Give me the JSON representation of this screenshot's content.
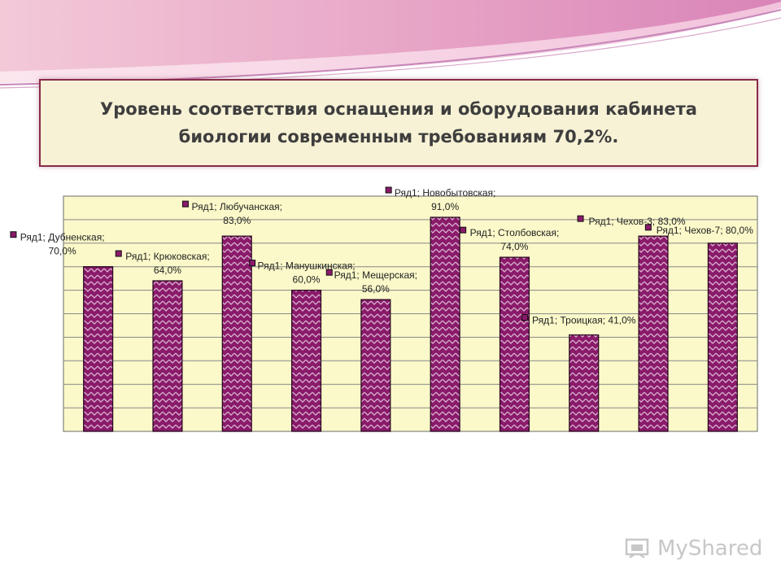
{
  "title": {
    "line1": "Уровень соответствия оснащения и оборудования кабинета",
    "line2": "биологии современным требованиям  70,2%."
  },
  "colors": {
    "bar_fill": "#8a1a6a",
    "bar_hatch": "#d9b0d0",
    "plot_bg": "#fbf9c9",
    "grid": "#888888",
    "title_bg": "#f7f2d6",
    "title_border": "#8a2a4a"
  },
  "watermark": {
    "text": "MyShared",
    "icon": "presentation-icon"
  },
  "chart_data": {
    "type": "bar",
    "ylim": [
      0,
      100
    ],
    "grid": true,
    "series": [
      {
        "name": "Ряд1",
        "categories": [
          "Дубненская",
          "Крюковская",
          "Любучанская",
          "Манушкинская",
          "Мещерская",
          "Новобытовская",
          "Столбовская",
          "Троицкая",
          "Чехов-3",
          "Чехов-7"
        ],
        "values": [
          70.0,
          64.0,
          83.0,
          60.0,
          56.0,
          91.0,
          74.0,
          41.0,
          83.0,
          80.0
        ],
        "labels": [
          [
            "Ряд1; Дубненская;",
            "70,0%"
          ],
          [
            "Ряд1; Крюковская;",
            "64,0%"
          ],
          [
            "Ряд1; Любучанская;",
            "83,0%"
          ],
          [
            "Ряд1; Манушкинская;",
            "60,0%"
          ],
          [
            "Ряд1; Мещерская;",
            "56,0%"
          ],
          [
            "Ряд1; Новобытовская;",
            "91,0%"
          ],
          [
            "Ряд1; Столбовская;",
            "74,0%"
          ],
          [
            "Ряд1; Троицкая; 41,0%"
          ],
          [
            "Ряд1; Чехов-3; 83,0%"
          ],
          [
            "Ряд1; Чехов-7; 80,0%"
          ]
        ]
      }
    ]
  }
}
